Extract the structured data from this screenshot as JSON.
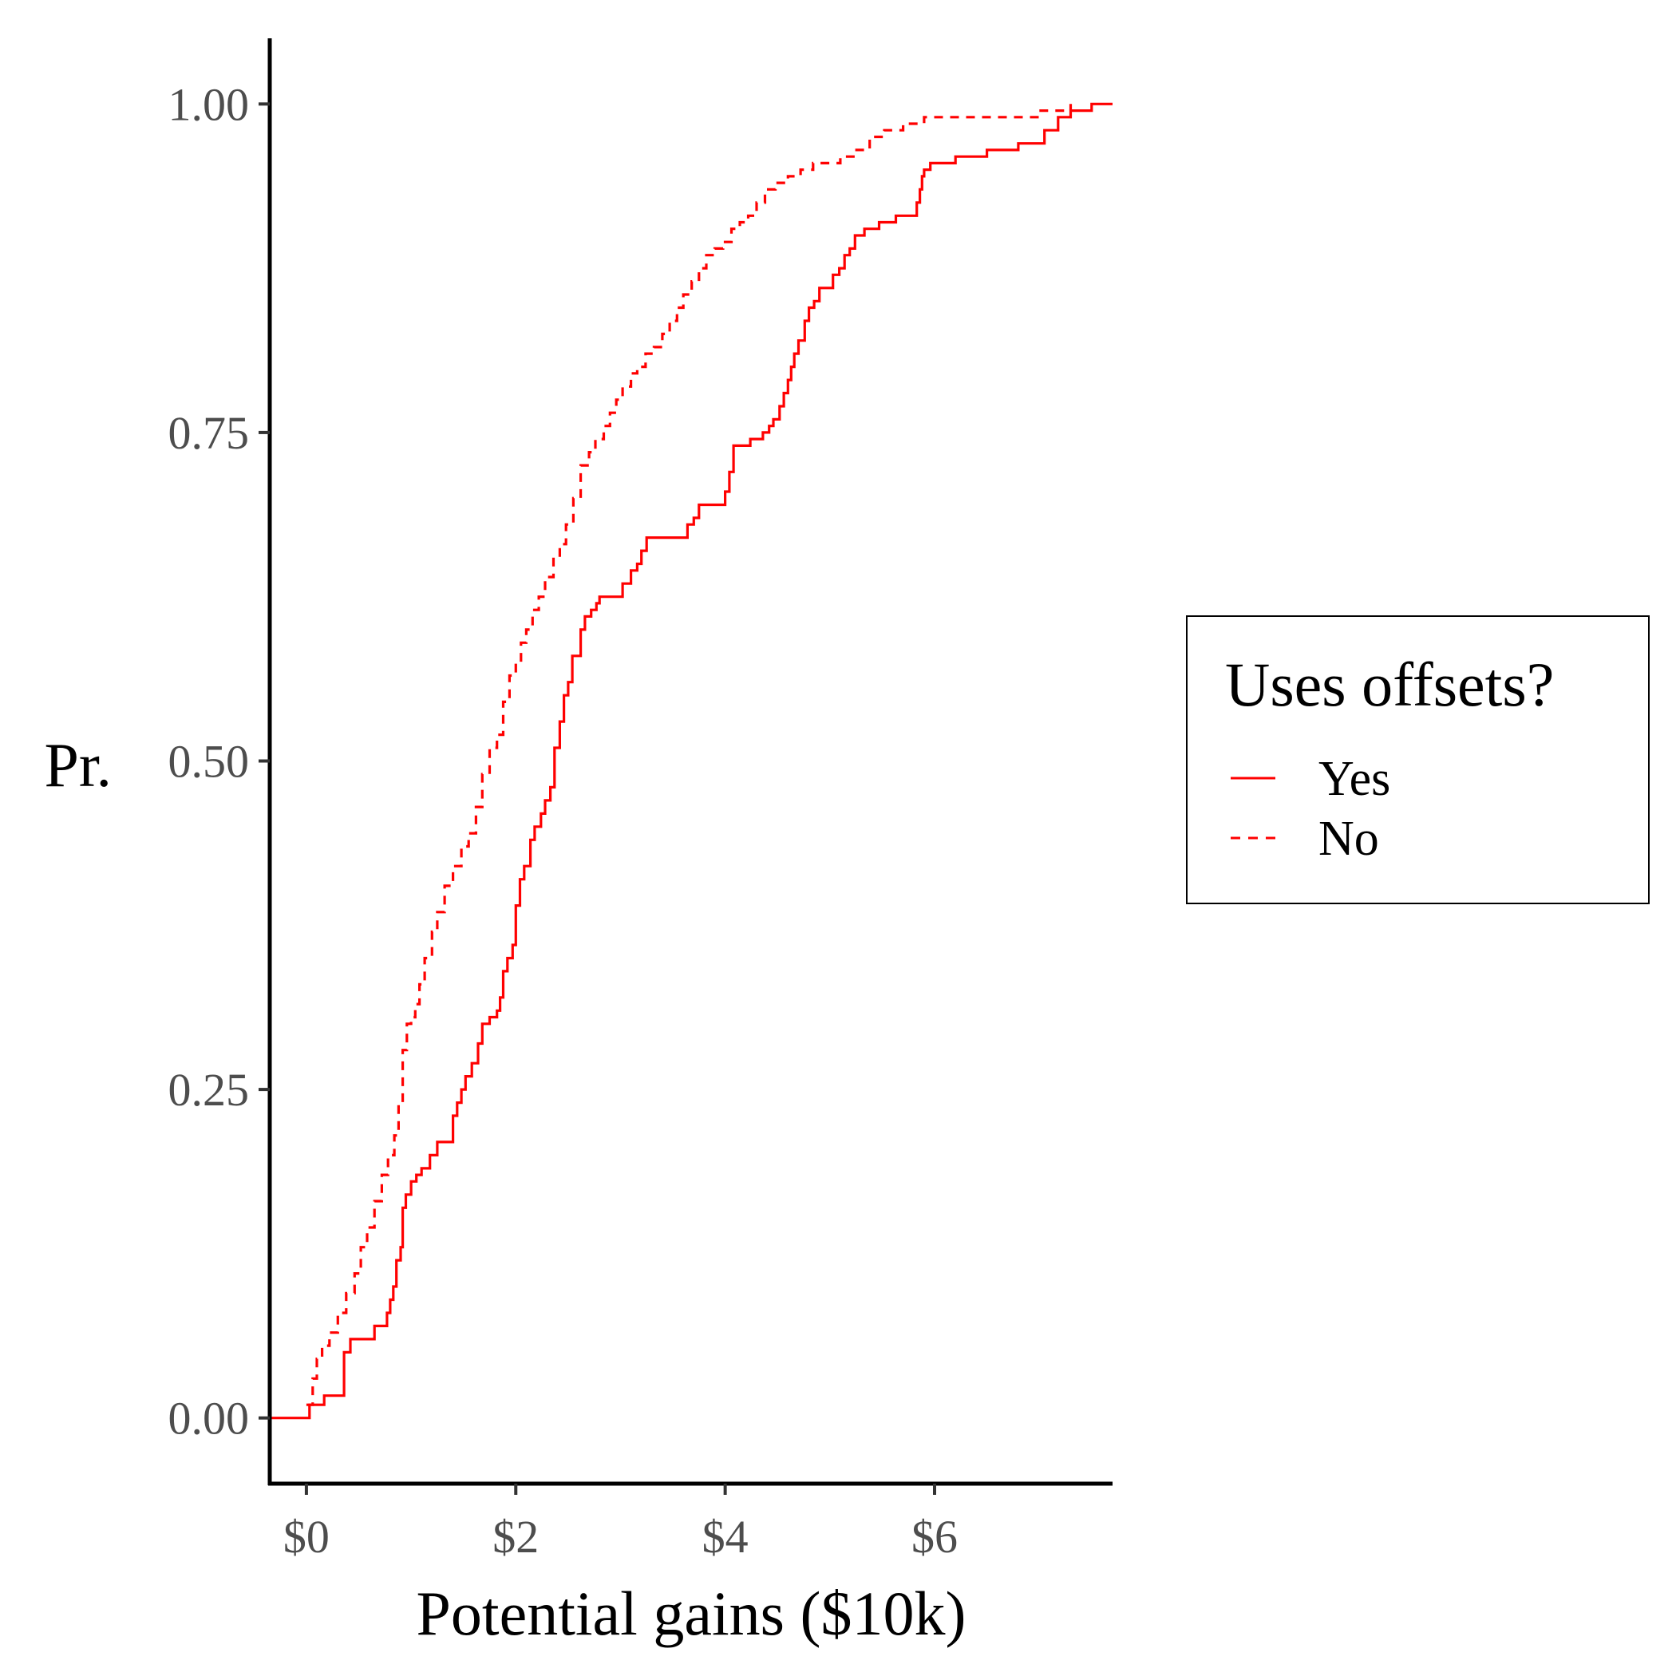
{
  "chart_data": {
    "type": "line",
    "subtype": "step-ecdf",
    "title": "",
    "xlabel": "Potential gains ($10k)",
    "ylabel": "Pr.",
    "xlim": [
      -0.35,
      7.7
    ],
    "ylim": [
      -0.05,
      1.05
    ],
    "x_ticks": [
      {
        "value": 0,
        "label": "$0"
      },
      {
        "value": 2,
        "label": "$2"
      },
      {
        "value": 4,
        "label": "$4"
      },
      {
        "value": 6,
        "label": "$6"
      }
    ],
    "y_ticks": [
      {
        "value": 0,
        "label": "0.00"
      },
      {
        "value": 0.25,
        "label": "0.25"
      },
      {
        "value": 0.5,
        "label": "0.50"
      },
      {
        "value": 0.75,
        "label": "0.75"
      },
      {
        "value": 1,
        "label": "1.00"
      }
    ],
    "grid": false,
    "legend": {
      "title": "Uses offsets?",
      "position": "right"
    },
    "series": [
      {
        "name": "Yes",
        "color": "#ff0000",
        "linestyle": "solid",
        "points": [
          [
            -0.35,
            0
          ],
          [
            0.03,
            0
          ],
          [
            0.03,
            0.01
          ],
          [
            0.17,
            0.01
          ],
          [
            0.17,
            0.017
          ],
          [
            0.36,
            0.017
          ],
          [
            0.36,
            0.05
          ],
          [
            0.42,
            0.06
          ],
          [
            0.62,
            0.06
          ],
          [
            0.65,
            0.07
          ],
          [
            0.72,
            0.07
          ],
          [
            0.77,
            0.08
          ],
          [
            0.8,
            0.09
          ],
          [
            0.83,
            0.1
          ],
          [
            0.86,
            0.12
          ],
          [
            0.9,
            0.13
          ],
          [
            0.92,
            0.16
          ],
          [
            0.95,
            0.17
          ],
          [
            1.0,
            0.18
          ],
          [
            1.05,
            0.185
          ],
          [
            1.1,
            0.19
          ],
          [
            1.18,
            0.2
          ],
          [
            1.25,
            0.21
          ],
          [
            1.37,
            0.21
          ],
          [
            1.4,
            0.23
          ],
          [
            1.44,
            0.24
          ],
          [
            1.48,
            0.25
          ],
          [
            1.52,
            0.26
          ],
          [
            1.58,
            0.27
          ],
          [
            1.64,
            0.285
          ],
          [
            1.68,
            0.3
          ],
          [
            1.75,
            0.305
          ],
          [
            1.82,
            0.31
          ],
          [
            1.85,
            0.32
          ],
          [
            1.88,
            0.34
          ],
          [
            1.92,
            0.35
          ],
          [
            1.97,
            0.36
          ],
          [
            2.0,
            0.39
          ],
          [
            2.04,
            0.41
          ],
          [
            2.08,
            0.42
          ],
          [
            2.14,
            0.44
          ],
          [
            2.18,
            0.45
          ],
          [
            2.24,
            0.46
          ],
          [
            2.28,
            0.47
          ],
          [
            2.33,
            0.48
          ],
          [
            2.37,
            0.51
          ],
          [
            2.42,
            0.53
          ],
          [
            2.46,
            0.55
          ],
          [
            2.5,
            0.56
          ],
          [
            2.54,
            0.58
          ],
          [
            2.62,
            0.6
          ],
          [
            2.66,
            0.61
          ],
          [
            2.72,
            0.615
          ],
          [
            2.77,
            0.62
          ],
          [
            2.8,
            0.625
          ],
          [
            3.0,
            0.625
          ],
          [
            3.02,
            0.635
          ],
          [
            3.1,
            0.645
          ],
          [
            3.16,
            0.65
          ],
          [
            3.2,
            0.66
          ],
          [
            3.25,
            0.67
          ],
          [
            3.6,
            0.67
          ],
          [
            3.64,
            0.68
          ],
          [
            3.7,
            0.685
          ],
          [
            3.75,
            0.695
          ],
          [
            3.98,
            0.695
          ],
          [
            4.0,
            0.705
          ],
          [
            4.04,
            0.72
          ],
          [
            4.08,
            0.74
          ],
          [
            4.18,
            0.74
          ],
          [
            4.24,
            0.745
          ],
          [
            4.36,
            0.75
          ],
          [
            4.42,
            0.755
          ],
          [
            4.46,
            0.76
          ],
          [
            4.52,
            0.77
          ],
          [
            4.56,
            0.78
          ],
          [
            4.6,
            0.79
          ],
          [
            4.63,
            0.8
          ],
          [
            4.66,
            0.81
          ],
          [
            4.7,
            0.82
          ],
          [
            4.76,
            0.835
          ],
          [
            4.8,
            0.845
          ],
          [
            4.85,
            0.85
          ],
          [
            4.9,
            0.86
          ],
          [
            5.0,
            0.86
          ],
          [
            5.03,
            0.87
          ],
          [
            5.09,
            0.875
          ],
          [
            5.14,
            0.885
          ],
          [
            5.19,
            0.89
          ],
          [
            5.24,
            0.9
          ],
          [
            5.33,
            0.905
          ],
          [
            5.42,
            0.905
          ],
          [
            5.47,
            0.91
          ],
          [
            5.58,
            0.91
          ],
          [
            5.63,
            0.915
          ],
          [
            5.8,
            0.915
          ],
          [
            5.83,
            0.925
          ],
          [
            5.86,
            0.935
          ],
          [
            5.88,
            0.945
          ],
          [
            5.9,
            0.95
          ],
          [
            5.96,
            0.955
          ],
          [
            6.2,
            0.96
          ],
          [
            6.5,
            0.965
          ],
          [
            6.8,
            0.97
          ],
          [
            7.05,
            0.98
          ],
          [
            7.18,
            0.99
          ],
          [
            7.3,
            0.995
          ],
          [
            7.5,
            1.0
          ],
          [
            7.7,
            1.0
          ]
        ]
      },
      {
        "name": "No",
        "color": "#ff0000",
        "linestyle": "dashed",
        "points": [
          [
            0.0,
            0.01
          ],
          [
            0.06,
            0.03
          ],
          [
            0.1,
            0.045
          ],
          [
            0.15,
            0.055
          ],
          [
            0.22,
            0.065
          ],
          [
            0.3,
            0.08
          ],
          [
            0.38,
            0.095
          ],
          [
            0.46,
            0.11
          ],
          [
            0.52,
            0.13
          ],
          [
            0.58,
            0.145
          ],
          [
            0.65,
            0.165
          ],
          [
            0.72,
            0.185
          ],
          [
            0.78,
            0.2
          ],
          [
            0.84,
            0.215
          ],
          [
            0.88,
            0.24
          ],
          [
            0.92,
            0.28
          ],
          [
            0.96,
            0.3
          ],
          [
            1.0,
            0.305
          ],
          [
            1.04,
            0.315
          ],
          [
            1.08,
            0.33
          ],
          [
            1.13,
            0.35
          ],
          [
            1.2,
            0.37
          ],
          [
            1.25,
            0.385
          ],
          [
            1.32,
            0.405
          ],
          [
            1.4,
            0.42
          ],
          [
            1.48,
            0.435
          ],
          [
            1.55,
            0.445
          ],
          [
            1.62,
            0.465
          ],
          [
            1.68,
            0.49
          ],
          [
            1.75,
            0.51
          ],
          [
            1.82,
            0.52
          ],
          [
            1.88,
            0.545
          ],
          [
            1.94,
            0.565
          ],
          [
            2.0,
            0.575
          ],
          [
            2.05,
            0.59
          ],
          [
            2.1,
            0.6
          ],
          [
            2.16,
            0.615
          ],
          [
            2.22,
            0.625
          ],
          [
            2.28,
            0.64
          ],
          [
            2.36,
            0.655
          ],
          [
            2.42,
            0.665
          ],
          [
            2.48,
            0.68
          ],
          [
            2.55,
            0.7
          ],
          [
            2.62,
            0.725
          ],
          [
            2.7,
            0.735
          ],
          [
            2.76,
            0.745
          ],
          [
            2.84,
            0.755
          ],
          [
            2.9,
            0.765
          ],
          [
            2.96,
            0.775
          ],
          [
            3.02,
            0.785
          ],
          [
            3.1,
            0.795
          ],
          [
            3.16,
            0.8
          ],
          [
            3.24,
            0.81
          ],
          [
            3.32,
            0.815
          ],
          [
            3.4,
            0.825
          ],
          [
            3.47,
            0.835
          ],
          [
            3.54,
            0.845
          ],
          [
            3.6,
            0.855
          ],
          [
            3.68,
            0.865
          ],
          [
            3.75,
            0.875
          ],
          [
            3.82,
            0.885
          ],
          [
            3.9,
            0.89
          ],
          [
            3.98,
            0.895
          ],
          [
            4.06,
            0.905
          ],
          [
            4.14,
            0.91
          ],
          [
            4.22,
            0.915
          ],
          [
            4.3,
            0.925
          ],
          [
            4.38,
            0.935
          ],
          [
            4.48,
            0.94
          ],
          [
            4.6,
            0.945
          ],
          [
            4.72,
            0.95
          ],
          [
            4.84,
            0.955
          ],
          [
            4.96,
            0.955
          ],
          [
            5.1,
            0.96
          ],
          [
            5.24,
            0.965
          ],
          [
            5.38,
            0.975
          ],
          [
            5.52,
            0.98
          ],
          [
            5.7,
            0.985
          ],
          [
            5.9,
            0.99
          ],
          [
            6.2,
            0.99
          ],
          [
            6.6,
            0.99
          ],
          [
            7.0,
            0.995
          ],
          [
            7.15,
            0.995
          ],
          [
            7.3,
            1.0
          ]
        ]
      }
    ]
  }
}
